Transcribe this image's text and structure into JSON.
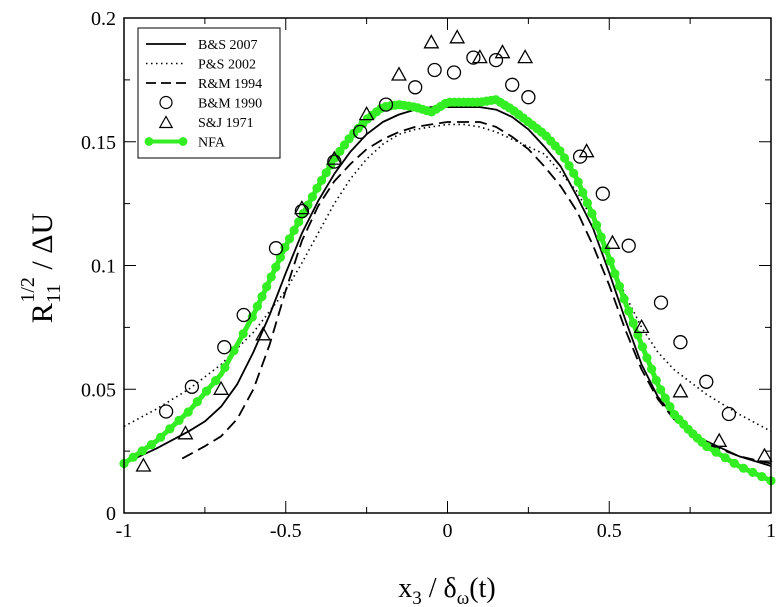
{
  "chart_data": {
    "type": "line",
    "title": "",
    "xlabel": {
      "main": "x",
      "sub": "3",
      "mid": " / δ",
      "sub2": "ω",
      "tail": "(t)"
    },
    "ylabel": {
      "main": "R",
      "sub": "11",
      "sup": "1/2",
      "tail": " / ΔU"
    },
    "xlim": [
      -1,
      1
    ],
    "ylim": [
      0,
      0.2
    ],
    "xticks": [
      -1,
      -0.5,
      0,
      0.5,
      1
    ],
    "xtick_labels": [
      "-1",
      "-0.5",
      "0",
      "0.5",
      "1"
    ],
    "yticks": [
      0,
      0.05,
      0.1,
      0.15,
      0.2
    ],
    "ytick_labels": [
      "0",
      "0.05",
      "0.1",
      "0.15",
      "0.2"
    ],
    "legend_position": "top-left",
    "series": [
      {
        "name": "B&S 2007",
        "style": "solid",
        "color": "#000000",
        "x": [
          -1.0,
          -0.9,
          -0.8,
          -0.75,
          -0.7,
          -0.65,
          -0.6,
          -0.55,
          -0.5,
          -0.45,
          -0.4,
          -0.35,
          -0.3,
          -0.25,
          -0.2,
          -0.15,
          -0.1,
          -0.05,
          0.0,
          0.05,
          0.1,
          0.15,
          0.2,
          0.25,
          0.3,
          0.35,
          0.4,
          0.45,
          0.5,
          0.55,
          0.6,
          0.65,
          0.7,
          0.75,
          0.8,
          0.9,
          1.0
        ],
        "y": [
          0.02,
          0.026,
          0.033,
          0.037,
          0.043,
          0.052,
          0.065,
          0.08,
          0.097,
          0.113,
          0.126,
          0.137,
          0.146,
          0.153,
          0.158,
          0.161,
          0.163,
          0.164,
          0.164,
          0.164,
          0.164,
          0.163,
          0.16,
          0.155,
          0.148,
          0.14,
          0.128,
          0.115,
          0.097,
          0.078,
          0.06,
          0.047,
          0.039,
          0.033,
          0.029,
          0.023,
          0.019
        ]
      },
      {
        "name": "P&S 2002",
        "style": "dotted",
        "color": "#000000",
        "x": [
          -1.0,
          -0.9,
          -0.8,
          -0.7,
          -0.6,
          -0.5,
          -0.45,
          -0.4,
          -0.35,
          -0.3,
          -0.25,
          -0.2,
          -0.15,
          -0.1,
          -0.05,
          0.0,
          0.05,
          0.1,
          0.15,
          0.2,
          0.3,
          0.4,
          0.45,
          0.5,
          0.55,
          0.6,
          0.65,
          0.7,
          0.8,
          0.9,
          1.0
        ],
        "y": [
          0.035,
          0.042,
          0.05,
          0.06,
          0.073,
          0.09,
          0.101,
          0.113,
          0.125,
          0.135,
          0.143,
          0.149,
          0.153,
          0.155,
          0.156,
          0.157,
          0.157,
          0.156,
          0.154,
          0.151,
          0.145,
          0.13,
          0.118,
          0.103,
          0.088,
          0.075,
          0.065,
          0.058,
          0.048,
          0.04,
          0.033
        ]
      },
      {
        "name": "R&M 1994",
        "style": "dashed",
        "color": "#000000",
        "x": [
          -0.82,
          -0.75,
          -0.7,
          -0.65,
          -0.6,
          -0.55,
          -0.5,
          -0.45,
          -0.4,
          -0.35,
          -0.3,
          -0.25,
          -0.2,
          -0.15,
          -0.1,
          -0.05,
          0.0,
          0.05,
          0.1,
          0.15,
          0.2,
          0.25,
          0.3,
          0.35,
          0.4,
          0.45,
          0.5,
          0.55,
          0.6,
          0.65,
          0.7,
          0.75,
          0.8,
          0.9,
          1.0
        ],
        "y": [
          0.022,
          0.027,
          0.031,
          0.038,
          0.05,
          0.068,
          0.09,
          0.11,
          0.124,
          0.134,
          0.141,
          0.147,
          0.151,
          0.154,
          0.156,
          0.157,
          0.158,
          0.158,
          0.158,
          0.156,
          0.152,
          0.147,
          0.14,
          0.132,
          0.122,
          0.108,
          0.092,
          0.074,
          0.058,
          0.046,
          0.038,
          0.033,
          0.028,
          0.023,
          0.02
        ]
      },
      {
        "name": "B&M 1990",
        "style": "circle",
        "color": "#000000",
        "x": [
          -0.87,
          -0.79,
          -0.69,
          -0.63,
          -0.53,
          -0.45,
          -0.35,
          -0.27,
          -0.19,
          -0.1,
          -0.04,
          0.02,
          0.08,
          0.15,
          0.2,
          0.25,
          0.41,
          0.48,
          0.56,
          0.66,
          0.72,
          0.8,
          0.87
        ],
        "y": [
          0.041,
          0.051,
          0.067,
          0.08,
          0.107,
          0.122,
          0.142,
          0.154,
          0.165,
          0.172,
          0.179,
          0.178,
          0.184,
          0.183,
          0.173,
          0.168,
          0.144,
          0.129,
          0.108,
          0.085,
          0.069,
          0.053,
          0.04
        ]
      },
      {
        "name": "S&J 1971",
        "style": "triangle",
        "color": "#000000",
        "x": [
          -0.94,
          -0.81,
          -0.7,
          -0.57,
          -0.45,
          -0.35,
          -0.25,
          -0.15,
          -0.05,
          0.03,
          0.1,
          0.17,
          0.24,
          0.43,
          0.51,
          0.6,
          0.72,
          0.84,
          0.98
        ],
        "y": [
          0.019,
          0.032,
          0.05,
          0.072,
          0.123,
          0.143,
          0.161,
          0.177,
          0.19,
          0.192,
          0.184,
          0.186,
          0.184,
          0.146,
          0.109,
          0.075,
          0.049,
          0.029,
          0.023
        ]
      },
      {
        "name": "NFA",
        "style": "line-dot",
        "color": "#33ee22",
        "x": [
          -1.0,
          -0.9,
          -0.8,
          -0.7,
          -0.6,
          -0.55,
          -0.5,
          -0.45,
          -0.4,
          -0.35,
          -0.3,
          -0.25,
          -0.2,
          -0.15,
          -0.1,
          -0.05,
          0.0,
          0.05,
          0.1,
          0.15,
          0.2,
          0.25,
          0.3,
          0.35,
          0.4,
          0.45,
          0.5,
          0.55,
          0.6,
          0.65,
          0.7,
          0.75,
          0.8,
          0.9,
          1.0
        ],
        "y": [
          0.02,
          0.029,
          0.041,
          0.056,
          0.08,
          0.094,
          0.108,
          0.12,
          0.132,
          0.143,
          0.152,
          0.159,
          0.164,
          0.165,
          0.164,
          0.162,
          0.166,
          0.166,
          0.166,
          0.167,
          0.163,
          0.158,
          0.153,
          0.146,
          0.135,
          0.12,
          0.103,
          0.085,
          0.068,
          0.052,
          0.04,
          0.033,
          0.027,
          0.019,
          0.013
        ]
      }
    ]
  }
}
